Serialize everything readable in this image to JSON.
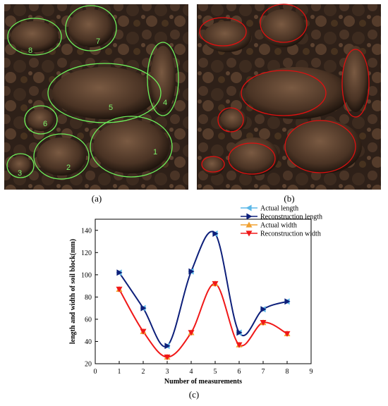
{
  "panels": {
    "a": {
      "label": "(a)",
      "numbers": [
        "8",
        "7",
        "5",
        "4",
        "6",
        "1",
        "2",
        "3"
      ]
    },
    "b": {
      "label": "(b)"
    }
  },
  "chart_data": {
    "type": "line",
    "label": "(c)",
    "x_label": "Number of measurements",
    "y_label": "length and width of soil block(mm)",
    "x": [
      1,
      2,
      3,
      4,
      5,
      6,
      7,
      8
    ],
    "xlim": [
      0,
      9
    ],
    "xticks": [
      0,
      1,
      2,
      3,
      4,
      5,
      6,
      7,
      8,
      9
    ],
    "ylim": [
      20,
      150
    ],
    "yticks": [
      20,
      40,
      60,
      80,
      100,
      120,
      140
    ],
    "series": [
      {
        "name": "Actual length",
        "color": "#5bb8e8",
        "marker": "left",
        "line": false,
        "values": [
          102,
          70,
          36,
          103,
          137,
          48,
          69,
          76
        ]
      },
      {
        "name": "Reconstruction length",
        "color": "#0d1f7a",
        "marker": "right",
        "line": true,
        "values": [
          102,
          70,
          36,
          103,
          137,
          48,
          69,
          76
        ]
      },
      {
        "name": "Actual width",
        "color": "#f0a030",
        "marker": "up",
        "line": false,
        "values": [
          87,
          49,
          26,
          48,
          92,
          37,
          57,
          47
        ]
      },
      {
        "name": "Reconstruction width",
        "color": "#f01818",
        "marker": "down",
        "line": true,
        "values": [
          87,
          49,
          26,
          48,
          92,
          37,
          57,
          47
        ]
      }
    ]
  }
}
